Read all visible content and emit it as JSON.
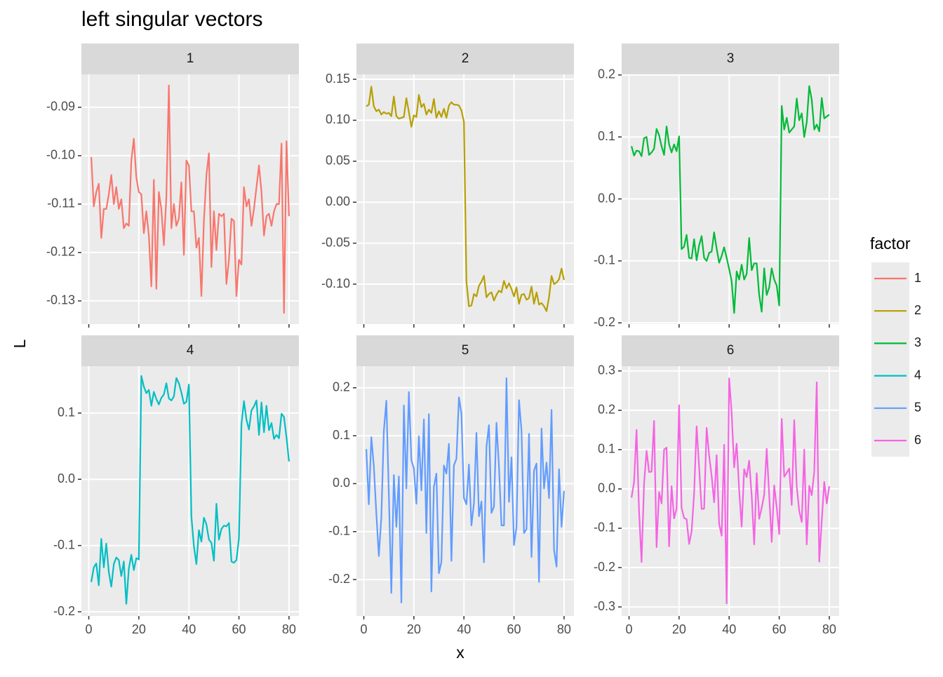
{
  "chart_data": {
    "type": "line",
    "title": "left singular vectors",
    "x_label": "x",
    "y_label": "L",
    "legend_title": "factor",
    "grid": true,
    "x": [
      1,
      2,
      3,
      4,
      5,
      6,
      7,
      8,
      9,
      10,
      11,
      12,
      13,
      14,
      15,
      16,
      17,
      18,
      19,
      20,
      21,
      22,
      23,
      24,
      25,
      26,
      27,
      28,
      29,
      30,
      31,
      32,
      33,
      34,
      35,
      36,
      37,
      38,
      39,
      40,
      41,
      42,
      43,
      44,
      45,
      46,
      47,
      48,
      49,
      50,
      51,
      52,
      53,
      54,
      55,
      56,
      57,
      58,
      59,
      60,
      61,
      62,
      63,
      64,
      65,
      66,
      67,
      68,
      69,
      70,
      71,
      72,
      73,
      74,
      75,
      76,
      77,
      78,
      79,
      80
    ],
    "xlim": [
      -2.95,
      83.95
    ],
    "xticks": [
      0,
      20,
      40,
      60,
      80
    ],
    "series": [
      {
        "name": "1",
        "color": "#F8766D",
        "ylim": [
          -0.1348,
          -0.0832
        ],
        "yticks": [
          -0.13,
          -0.12,
          -0.11,
          {
            "value": -0.1,
            "label": "-0.10"
          },
          -0.09
        ],
        "values": [
          -0.1003,
          -0.1105,
          -0.1075,
          -0.1058,
          -0.117,
          -0.111,
          -0.111,
          -0.108,
          -0.104,
          -0.11,
          -0.1065,
          -0.111,
          -0.109,
          -0.115,
          -0.114,
          -0.1145,
          -0.101,
          -0.0965,
          -0.1045,
          -0.1075,
          -0.108,
          -0.116,
          -0.1115,
          -0.1165,
          -0.127,
          -0.105,
          -0.1275,
          -0.1075,
          -0.111,
          -0.1185,
          -0.1085,
          -0.0855,
          -0.115,
          -0.11,
          -0.1145,
          -0.113,
          -0.1055,
          -0.1205,
          -0.101,
          -0.102,
          -0.1115,
          -0.1115,
          -0.119,
          -0.117,
          -0.129,
          -0.1135,
          -0.104,
          -0.0995,
          -0.123,
          -0.1115,
          -0.1195,
          -0.112,
          -0.1125,
          -0.112,
          -0.1265,
          -0.1215,
          -0.113,
          -0.1135,
          -0.129,
          -0.1215,
          -0.1225,
          -0.1065,
          -0.1105,
          -0.109,
          -0.1145,
          -0.111,
          -0.1065,
          -0.102,
          -0.1075,
          -0.1165,
          -0.1125,
          -0.112,
          -0.1145,
          -0.1115,
          -0.11,
          -0.11,
          -0.0975,
          -0.1325,
          -0.097,
          -0.1125
        ]
      },
      {
        "name": "2",
        "color": "#B79F00",
        "ylim": [
          -0.1488,
          0.156
        ],
        "yticks": [
          {
            "value": -0.1,
            "label": "-0.10"
          },
          -0.05,
          {
            "value": 0,
            "label": "0.00"
          },
          0.05,
          {
            "value": 0.1,
            "label": "0.10"
          },
          0.15
        ],
        "values": [
          0.117,
          0.119,
          0.141,
          0.117,
          0.111,
          0.113,
          0.107,
          0.11,
          0.108,
          0.109,
          0.105,
          0.129,
          0.105,
          0.102,
          0.103,
          0.104,
          0.127,
          0.11,
          0.092,
          0.106,
          0.104,
          0.131,
          0.116,
          0.12,
          0.107,
          0.113,
          0.109,
          0.126,
          0.103,
          0.111,
          0.104,
          0.114,
          0.103,
          0.118,
          0.122,
          0.119,
          0.119,
          0.118,
          0.112,
          0.098,
          -0.097,
          -0.127,
          -0.126,
          -0.112,
          -0.115,
          -0.102,
          -0.097,
          -0.09,
          -0.116,
          -0.112,
          -0.11,
          -0.12,
          -0.113,
          -0.108,
          -0.11,
          -0.096,
          -0.105,
          -0.099,
          -0.106,
          -0.115,
          -0.104,
          -0.124,
          -0.113,
          -0.112,
          -0.119,
          -0.117,
          -0.103,
          -0.124,
          -0.11,
          -0.125,
          -0.123,
          -0.127,
          -0.133,
          -0.116,
          -0.09,
          -0.1,
          -0.098,
          -0.094,
          -0.081,
          -0.095
        ]
      },
      {
        "name": "3",
        "color": "#00BA38",
        "ylim": [
          -0.202,
          0.201
        ],
        "yticks": [
          -0.2,
          -0.1,
          {
            "value": 0,
            "label": "0.0"
          },
          0.1,
          0.2
        ],
        "values": [
          0.085,
          0.07,
          0.078,
          0.077,
          0.069,
          0.098,
          0.1,
          0.071,
          0.075,
          0.081,
          0.113,
          0.103,
          0.085,
          0.071,
          0.117,
          0.088,
          0.075,
          0.088,
          0.077,
          0.101,
          -0.081,
          -0.077,
          -0.058,
          -0.095,
          -0.096,
          -0.065,
          -0.099,
          -0.075,
          -0.06,
          -0.095,
          -0.1,
          -0.087,
          -0.085,
          -0.054,
          -0.08,
          -0.103,
          -0.092,
          -0.078,
          -0.095,
          -0.113,
          -0.133,
          -0.184,
          -0.117,
          -0.13,
          -0.106,
          -0.13,
          -0.121,
          -0.063,
          -0.115,
          -0.104,
          -0.104,
          -0.155,
          -0.182,
          -0.112,
          -0.155,
          -0.143,
          -0.112,
          -0.13,
          -0.14,
          -0.172,
          0.15,
          0.112,
          0.131,
          0.107,
          0.112,
          0.117,
          0.162,
          0.127,
          0.138,
          0.1,
          0.124,
          0.182,
          0.16,
          0.112,
          0.12,
          0.109,
          0.163,
          0.13,
          0.133,
          0.136
        ]
      },
      {
        "name": "4",
        "color": "#00BFC4",
        "ylim": [
          -0.2063,
          0.1707
        ],
        "yticks": [
          -0.2,
          -0.1,
          {
            "value": 0,
            "label": "0.0"
          },
          0.1
        ],
        "values": [
          -0.155,
          -0.133,
          -0.127,
          -0.16,
          -0.09,
          -0.133,
          -0.097,
          -0.14,
          -0.162,
          -0.128,
          -0.118,
          -0.122,
          -0.146,
          -0.124,
          -0.188,
          -0.135,
          -0.114,
          -0.137,
          -0.119,
          -0.121,
          0.156,
          0.14,
          0.13,
          0.135,
          0.111,
          0.132,
          0.121,
          0.113,
          0.123,
          0.128,
          0.145,
          0.122,
          0.119,
          0.125,
          0.153,
          0.145,
          0.131,
          0.114,
          0.117,
          0.143,
          -0.056,
          -0.101,
          -0.128,
          -0.077,
          -0.094,
          -0.058,
          -0.068,
          -0.091,
          -0.096,
          -0.123,
          -0.037,
          -0.091,
          -0.075,
          -0.07,
          -0.071,
          -0.066,
          -0.124,
          -0.126,
          -0.122,
          -0.089,
          0.083,
          0.118,
          0.09,
          0.075,
          0.104,
          0.11,
          0.119,
          0.067,
          0.116,
          0.071,
          0.111,
          0.074,
          0.085,
          0.061,
          0.067,
          0.062,
          0.099,
          0.094,
          0.063,
          0.027
        ]
      },
      {
        "name": "5",
        "color": "#619CFF",
        "ylim": [
          -0.276,
          0.245
        ],
        "yticks": [
          -0.2,
          -0.1,
          {
            "value": 0,
            "label": "0.0"
          },
          0.1,
          0.2
        ],
        "values": [
          0.072,
          -0.043,
          0.097,
          0.037,
          -0.062,
          -0.151,
          -0.07,
          0.11,
          0.173,
          -0.023,
          -0.228,
          0.018,
          -0.09,
          0.015,
          -0.248,
          0.163,
          -0.01,
          0.191,
          0.049,
          0.032,
          -0.042,
          0.099,
          -0.014,
          0.134,
          -0.103,
          0.145,
          -0.225,
          -0.006,
          0.021,
          -0.187,
          -0.163,
          0.038,
          0.021,
          0.083,
          -0.161,
          0.038,
          0.052,
          0.18,
          0.146,
          -0.03,
          -0.043,
          0.04,
          -0.087,
          -0.041,
          0.106,
          -0.068,
          -0.037,
          -0.164,
          0.077,
          0.122,
          -0.061,
          -0.048,
          0.127,
          0.035,
          -0.087,
          -0.087,
          0.22,
          -0.038,
          0.055,
          -0.128,
          -0.091,
          0.174,
          0.111,
          -0.103,
          -0.095,
          0.104,
          -0.153,
          0.027,
          0.042,
          -0.205,
          0.115,
          -0.01,
          0.044,
          -0.03,
          0.154,
          -0.138,
          -0.173,
          0.03,
          -0.09,
          -0.015
        ]
      },
      {
        "name": "6",
        "color": "#F564E3",
        "ylim": [
          -0.323,
          0.312
        ],
        "yticks": [
          -0.3,
          -0.2,
          -0.1,
          {
            "value": 0,
            "label": "0.0"
          },
          0.1,
          0.2,
          0.3
        ],
        "values": [
          -0.022,
          0.017,
          0.15,
          -0.055,
          -0.186,
          0.012,
          0.097,
          0.043,
          0.044,
          0.173,
          -0.148,
          -0.008,
          -0.037,
          0.1,
          0.105,
          -0.146,
          0.007,
          -0.075,
          -0.05,
          0.213,
          -0.048,
          -0.074,
          -0.077,
          -0.14,
          -0.108,
          -0.012,
          0.159,
          0.055,
          -0.051,
          -0.05,
          0.155,
          0.085,
          0.033,
          -0.034,
          0.086,
          -0.089,
          -0.119,
          0.112,
          -0.291,
          0.281,
          0.194,
          0.055,
          0.115,
          -0.003,
          -0.096,
          0.05,
          0.03,
          0.072,
          -0.017,
          -0.141,
          0.04,
          -0.076,
          -0.048,
          -0.015,
          0.102,
          -0.016,
          -0.135,
          0.009,
          -0.047,
          -0.115,
          0.178,
          0.031,
          0.041,
          0.052,
          -0.041,
          0.175,
          0.007,
          -0.056,
          -0.084,
          0.1,
          -0.141,
          0.008,
          -0.016,
          0.045,
          0.271,
          -0.185,
          -0.08,
          0.018,
          -0.037,
          0.007
        ]
      }
    ]
  }
}
